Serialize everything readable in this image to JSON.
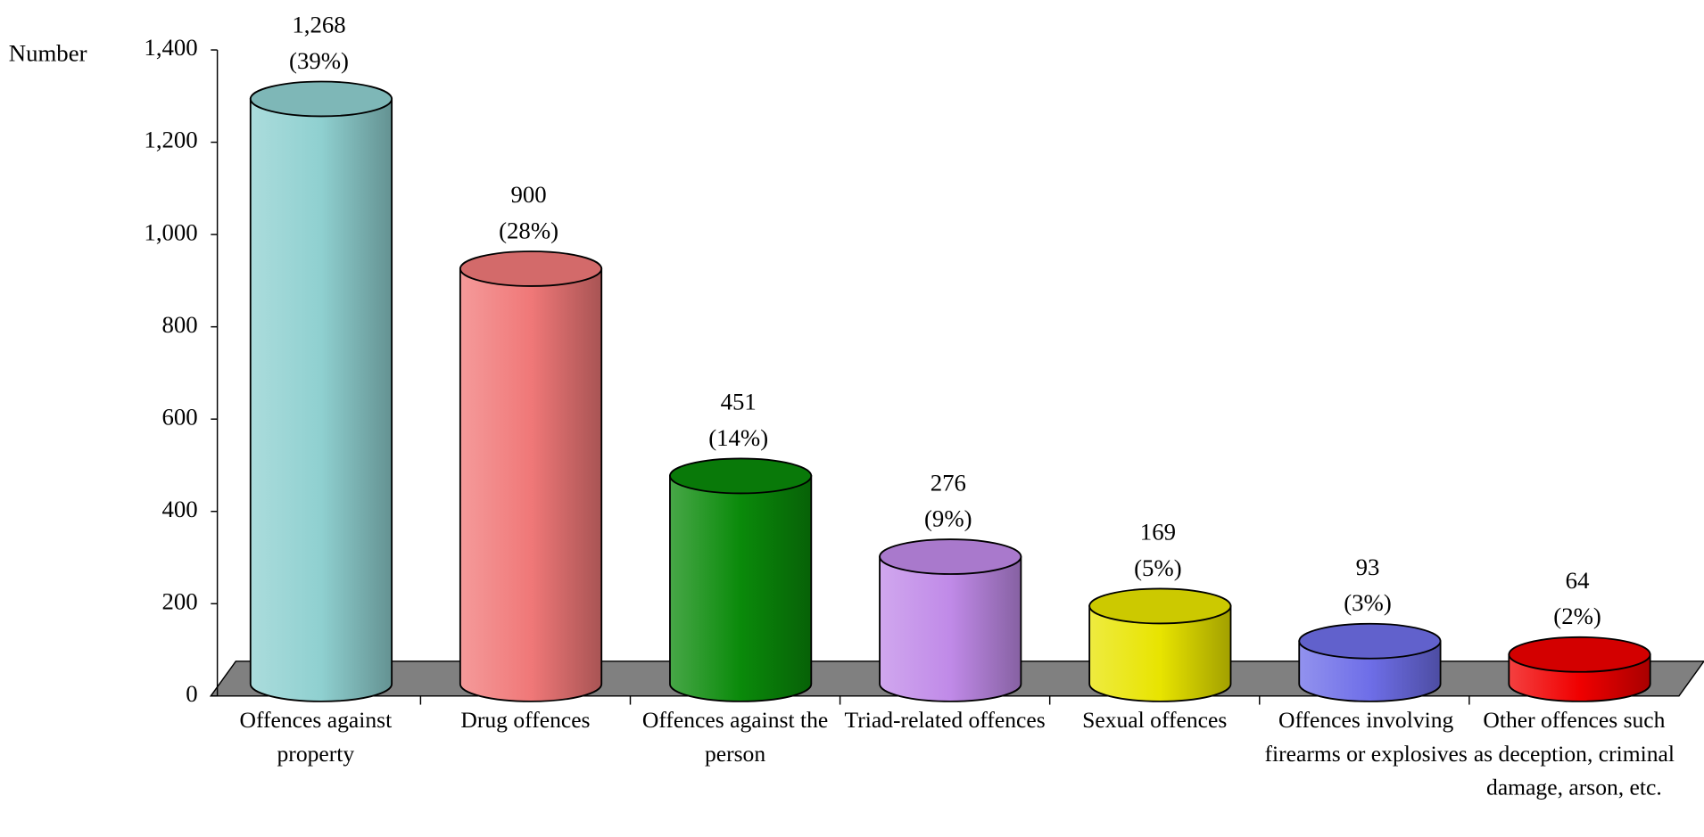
{
  "chart_data": {
    "type": "cylinder_bar",
    "y_axis_label": "Number",
    "categories": [
      "Offences against property",
      "Drug offences",
      "Offences against the person",
      "Triad-related offences",
      "Sexual offences",
      "Offences involving firearms or explosives",
      "Other offences such as deception, criminal damage, arson, etc."
    ],
    "values": [
      1268,
      900,
      451,
      276,
      169,
      93,
      64
    ],
    "value_labels": [
      "1,268",
      "900",
      "451",
      "276",
      "169",
      "93",
      "64"
    ],
    "share_labels": [
      "(39%)",
      "(28%)",
      "(14%)",
      "(9%)",
      "(5%)",
      "(3%)",
      "(2%)"
    ],
    "colors": [
      "#8fd0d0",
      "#f07878",
      "#0a8a0a",
      "#c08ae8",
      "#e8e400",
      "#6e6ee8",
      "#f00000"
    ],
    "ylim": [
      0,
      1400
    ],
    "yticks": [
      0,
      200,
      400,
      600,
      800,
      {
        "value": 1000,
        "label": "1,000"
      },
      {
        "value": 1200,
        "label": "1,200"
      },
      {
        "value": 1400,
        "label": "1,400"
      }
    ]
  }
}
